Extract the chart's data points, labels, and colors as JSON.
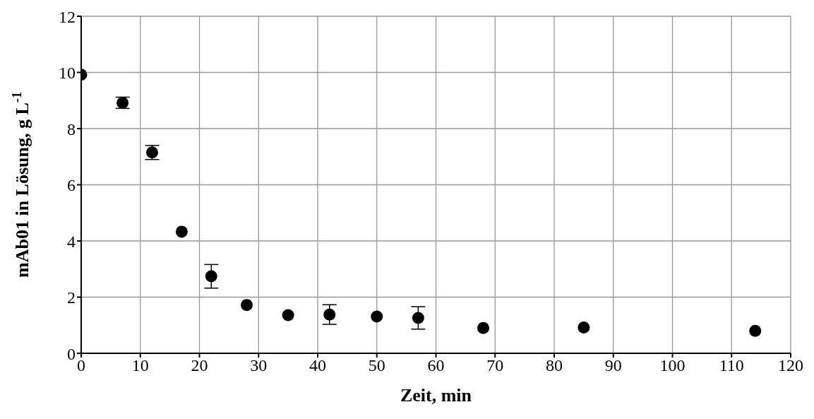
{
  "chart_data": {
    "type": "scatter",
    "xlabel": "Zeit, min",
    "ylabel": "mAb01 in Lösung, g L$^{-1}$",
    "x": [
      0,
      7,
      12,
      17,
      22,
      28,
      35,
      42,
      50,
      57,
      68,
      85,
      114
    ],
    "series": [
      {
        "color": "#000000",
        "values": [
          9.92,
          8.92,
          7.15,
          4.33,
          2.74,
          1.72,
          1.36,
          1.38,
          1.31,
          1.26,
          0.9,
          0.92,
          0.8
        ],
        "errors": [
          null,
          0.2,
          0.25,
          null,
          0.42,
          null,
          null,
          0.35,
          null,
          0.4,
          null,
          null,
          null
        ]
      }
    ],
    "xlim": [
      0,
      120
    ],
    "xticks": [
      0,
      10,
      20,
      30,
      40,
      50,
      60,
      70,
      80,
      90,
      100,
      110,
      120
    ],
    "ylim": [
      0,
      12
    ],
    "yticks": [
      0,
      2,
      4,
      6,
      8,
      10,
      12
    ],
    "grid": true,
    "marker": "circle",
    "legend": false
  }
}
